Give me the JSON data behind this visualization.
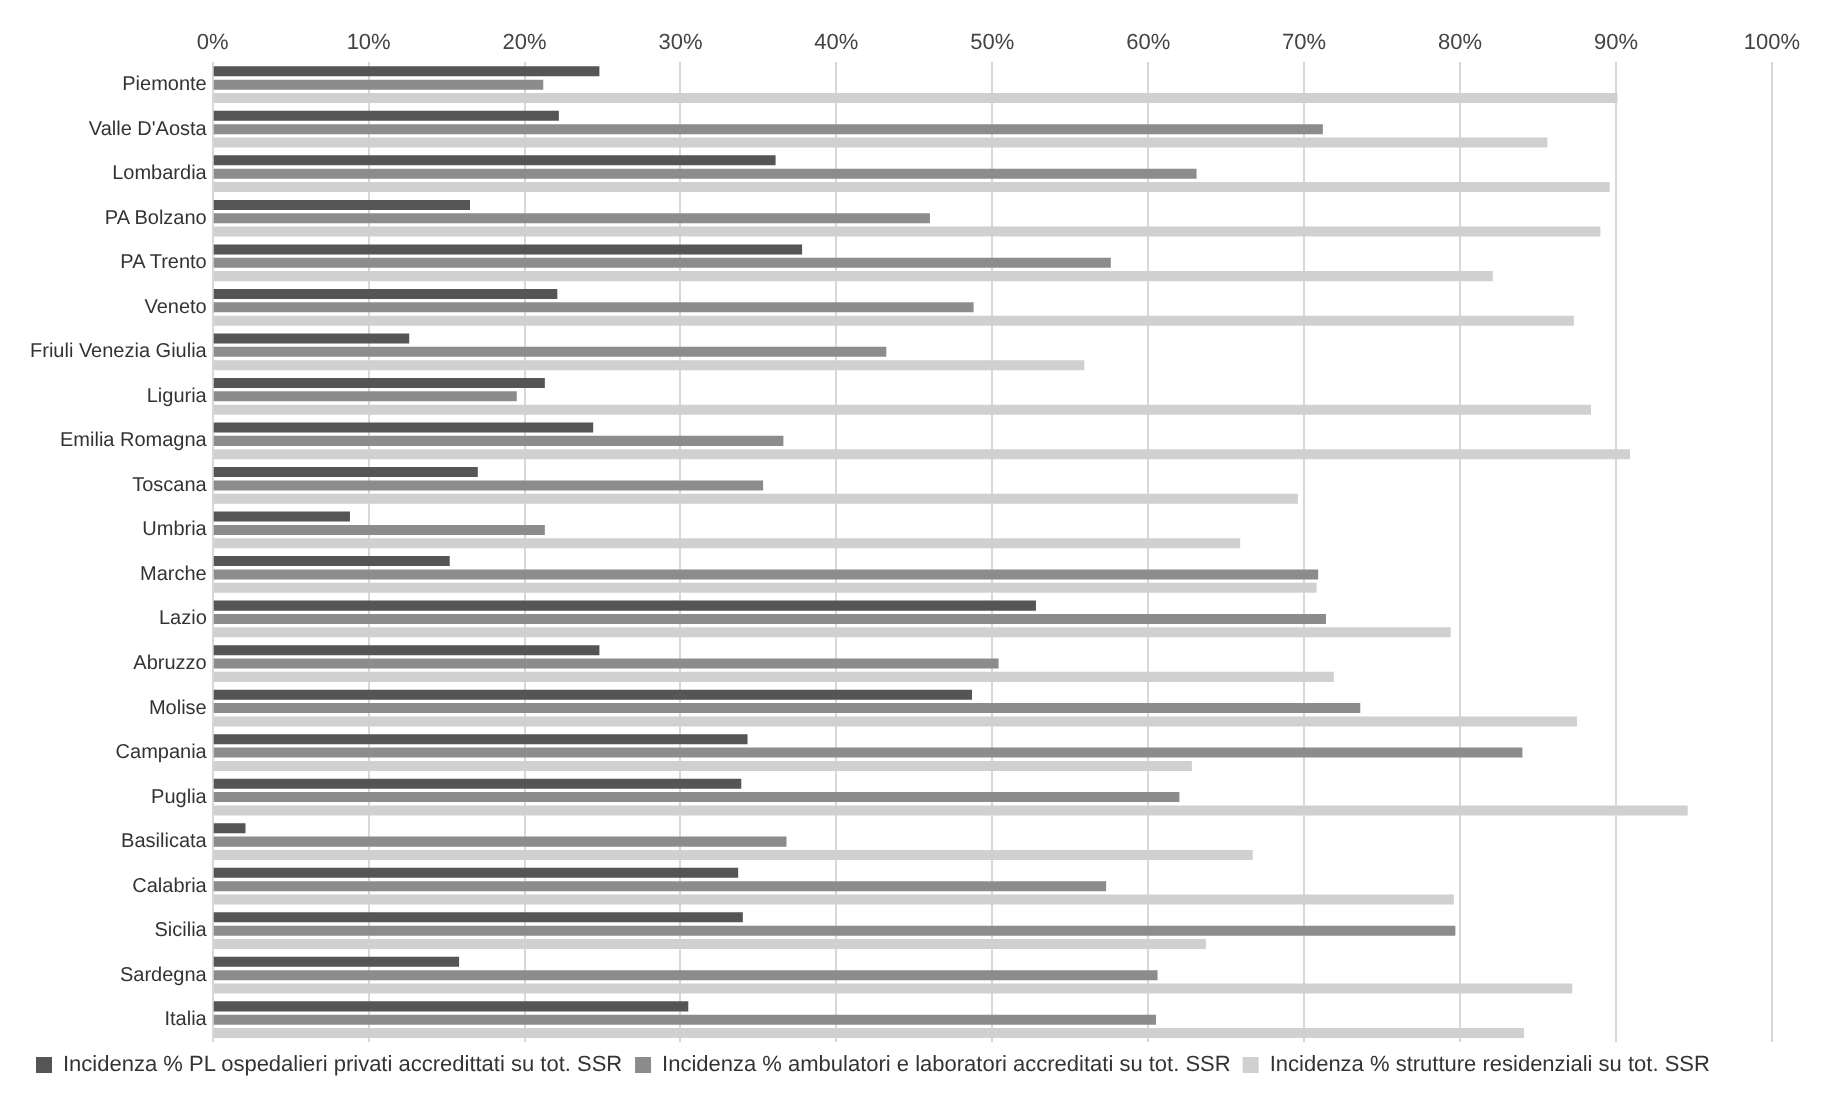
{
  "chart_data": {
    "type": "bar",
    "orientation": "horizontal",
    "categories": [
      "Piemonte",
      "Valle D'Aosta",
      "Lombardia",
      "PA Bolzano",
      "PA Trento",
      "Veneto",
      "Friuli Venezia Giulia",
      "Liguria",
      "Emilia Romagna",
      "Toscana",
      "Umbria",
      "Marche",
      "Lazio",
      "Abruzzo",
      "Molise",
      "Campania",
      "Puglia",
      "Basilicata",
      "Calabria",
      "Sicilia",
      "Sardegna",
      "Italia"
    ],
    "series": [
      {
        "name": "Incidenza % PL ospedalieri privati accredittati su tot. SSR",
        "color": "#555555",
        "values": [
          24.8,
          22.2,
          36.1,
          16.5,
          37.8,
          22.1,
          12.6,
          21.3,
          24.4,
          17.0,
          8.8,
          15.2,
          52.8,
          24.8,
          48.7,
          34.3,
          33.9,
          2.1,
          33.7,
          34.0,
          15.8,
          30.5
        ]
      },
      {
        "name": "Incidenza % ambulatori e laboratori accreditati su tot. SSR",
        "color": "#8c8c8c",
        "values": [
          21.2,
          71.2,
          63.1,
          46.0,
          57.6,
          48.8,
          43.2,
          19.5,
          36.6,
          35.3,
          21.3,
          70.9,
          71.4,
          50.4,
          73.6,
          84.0,
          62.0,
          36.8,
          57.3,
          79.7,
          60.6,
          60.5
        ]
      },
      {
        "name": "Incidenza % strutture residenziali su tot. SSR",
        "color": "#d0d0d0",
        "values": [
          90.1,
          85.6,
          89.6,
          89.0,
          82.1,
          87.3,
          55.9,
          88.4,
          90.9,
          69.6,
          65.9,
          70.8,
          79.4,
          71.9,
          87.5,
          62.8,
          94.6,
          66.7,
          79.6,
          63.7,
          87.2,
          84.1
        ]
      }
    ],
    "xlim": [
      0,
      100
    ],
    "xticks": [
      {
        "value": 0,
        "label": "0%"
      },
      {
        "value": 10,
        "label": "10%"
      },
      {
        "value": 20,
        "label": "20%"
      },
      {
        "value": 30,
        "label": "30%"
      },
      {
        "value": 40,
        "label": "40%"
      },
      {
        "value": 50,
        "label": "50%"
      },
      {
        "value": 60,
        "label": "60%"
      },
      {
        "value": 70,
        "label": "70%"
      },
      {
        "value": 80,
        "label": "80%"
      },
      {
        "value": 90,
        "label": "90%"
      },
      {
        "value": 100,
        "label": "100%"
      }
    ],
    "grid": "x",
    "legend": "bottom"
  }
}
